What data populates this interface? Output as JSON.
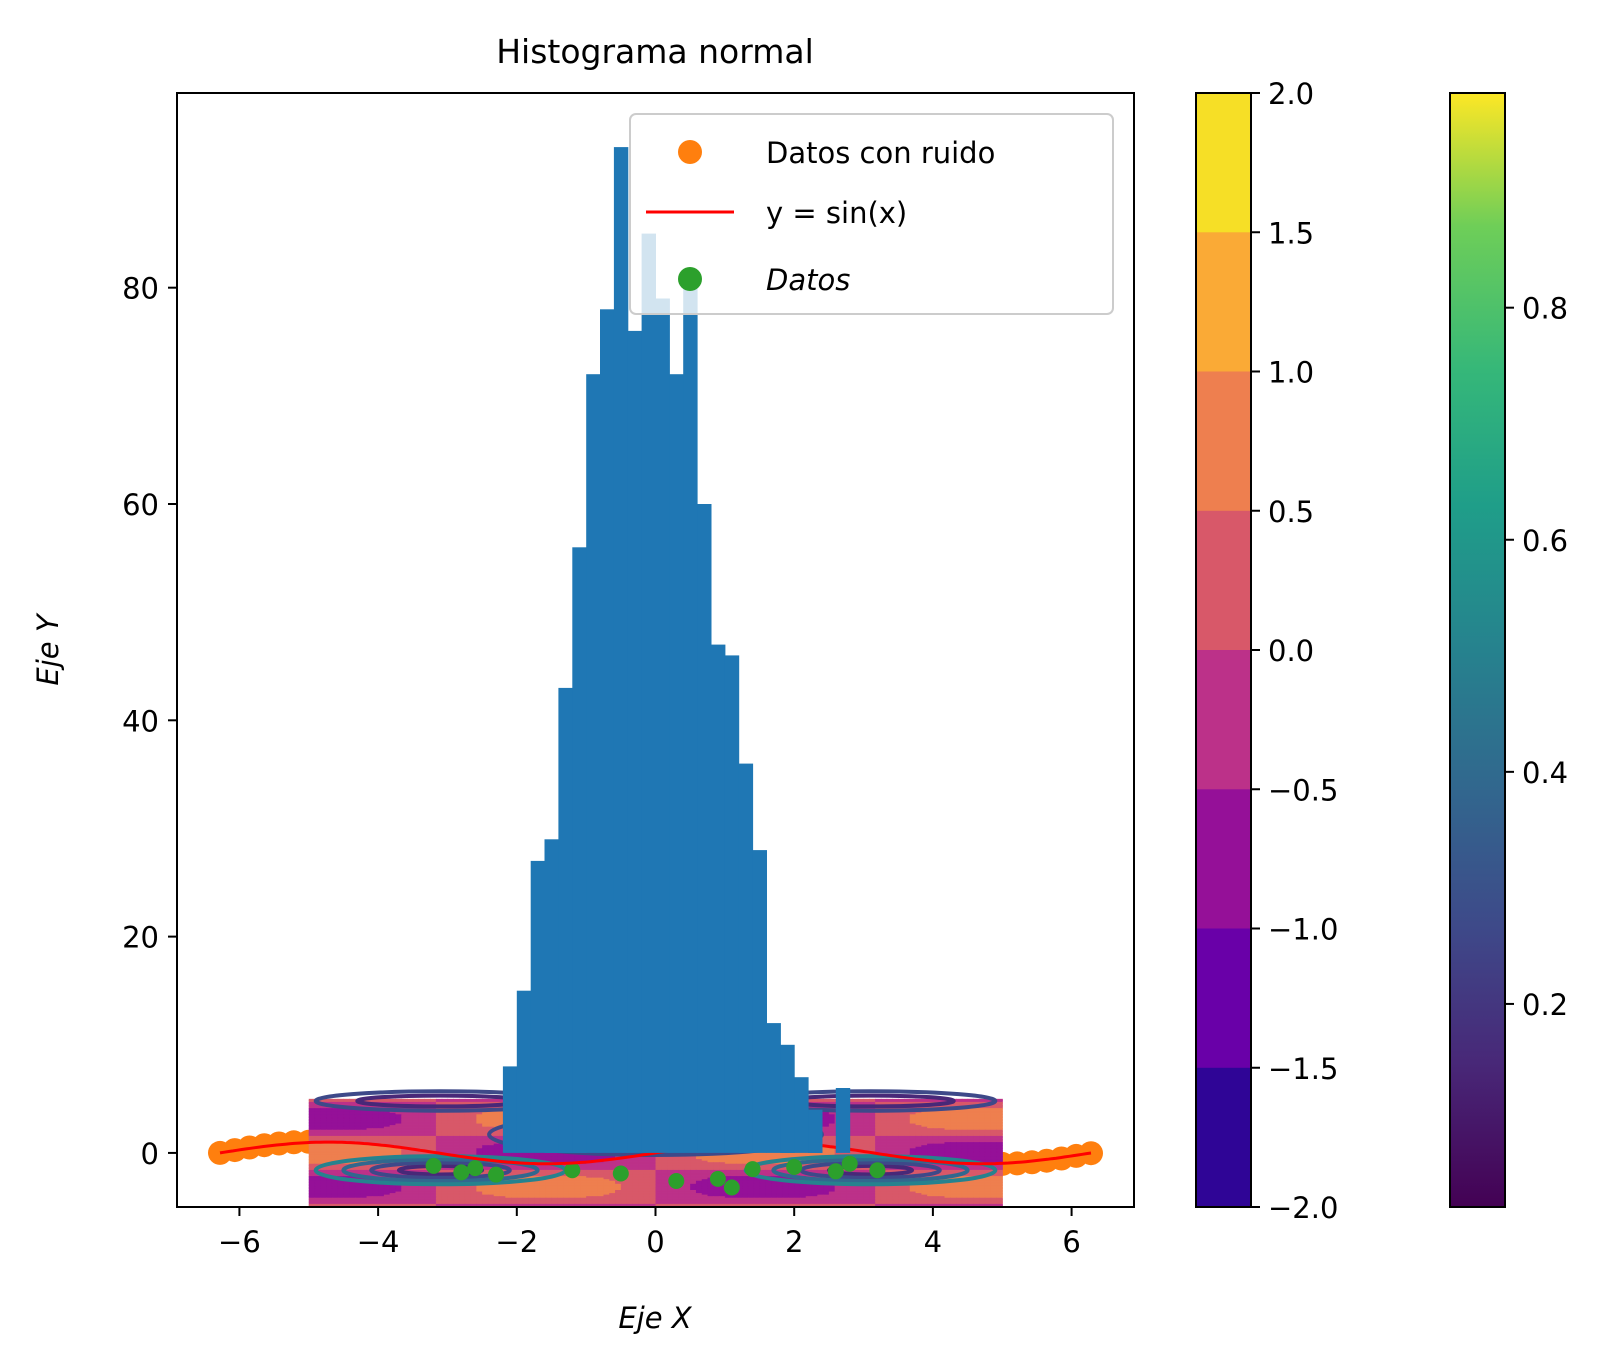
{
  "chart_data": {
    "type": "bar",
    "title": "Histograma normal",
    "xlabel": "Eje X",
    "ylabel": "Eje Y",
    "xlim": [
      -6.9,
      6.9
    ],
    "ylim": [
      -5,
      98
    ],
    "x_ticks": [
      -6,
      -4,
      -2,
      0,
      2,
      4,
      6
    ],
    "x_tick_labels": [
      "−6",
      "−4",
      "−2",
      "0",
      "2",
      "4",
      "6"
    ],
    "y_ticks": [
      0,
      20,
      40,
      60,
      80
    ],
    "y_tick_labels": [
      "0",
      "20",
      "40",
      "60",
      "80"
    ],
    "histogram": {
      "color": "#1f77b4",
      "bin_edges": [
        -2.2,
        -2.0,
        -1.8,
        -1.6,
        -1.4,
        -1.2,
        -1.0,
        -0.8,
        -0.6,
        -0.4,
        -0.2,
        0.0,
        0.2,
        0.4,
        0.6,
        0.8,
        1.0,
        1.2,
        1.4,
        1.6,
        1.8,
        2.0,
        2.2,
        2.4,
        2.6,
        2.8
      ],
      "counts": [
        8,
        15,
        27,
        29,
        43,
        56,
        72,
        78,
        93,
        76,
        85,
        79,
        72,
        80,
        60,
        47,
        46,
        36,
        28,
        12,
        10,
        7,
        4,
        0,
        6
      ]
    },
    "sine_curve": {
      "label": "y = sin(x)",
      "color": "#ff0000",
      "x_range": [
        -6.28,
        6.28
      ]
    },
    "noisy_points": {
      "label": "Datos con ruido",
      "color": "#ff7f0e",
      "x_range": [
        -6.28,
        6.28
      ]
    },
    "green_points": {
      "label": "Datos",
      "color": "#2ca02c"
    },
    "contourf": {
      "x_range": [
        -5,
        5
      ],
      "y_range": [
        -5,
        5
      ],
      "function": "sin(x)*cos(y)",
      "cmap": "plasma"
    },
    "contour_lines": {
      "function": "exp(-(x^2+y^2)/10)",
      "cmap": "viridis"
    },
    "legend": {
      "position": "upper right",
      "entries": [
        {
          "label": "Datos con ruido",
          "marker": "circle",
          "color": "#ff7f0e"
        },
        {
          "label": "y = sin(x)",
          "marker": "line",
          "color": "#ff0000"
        },
        {
          "label": "Datos",
          "marker": "circle",
          "color": "#2ca02c",
          "italic": true
        }
      ]
    },
    "colorbar_plasma": {
      "cmap": "plasma",
      "range": [
        -2.0,
        2.0
      ],
      "ticks": [
        2.0,
        1.5,
        1.0,
        0.5,
        0.0,
        -0.5,
        -1.0,
        -1.5,
        -2.0
      ],
      "tick_labels": [
        "2.0",
        "1.5",
        "1.0",
        "0.5",
        "0.0",
        "−0.5",
        "−1.0",
        "−1.5",
        "−2.0"
      ],
      "level_colors": [
        "#f6df26",
        "#faaa36",
        "#ee7f4f",
        "#d85869",
        "#bc3189",
        "#951098",
        "#6900a8",
        "#2f0596"
      ]
    },
    "colorbar_viridis": {
      "cmap": "viridis",
      "range": [
        0.0,
        1.0
      ],
      "ticks": [
        0.8,
        0.6,
        0.4,
        0.2
      ],
      "tick_labels": [
        "0.8",
        "0.6",
        "0.4",
        "0.2"
      ]
    }
  }
}
